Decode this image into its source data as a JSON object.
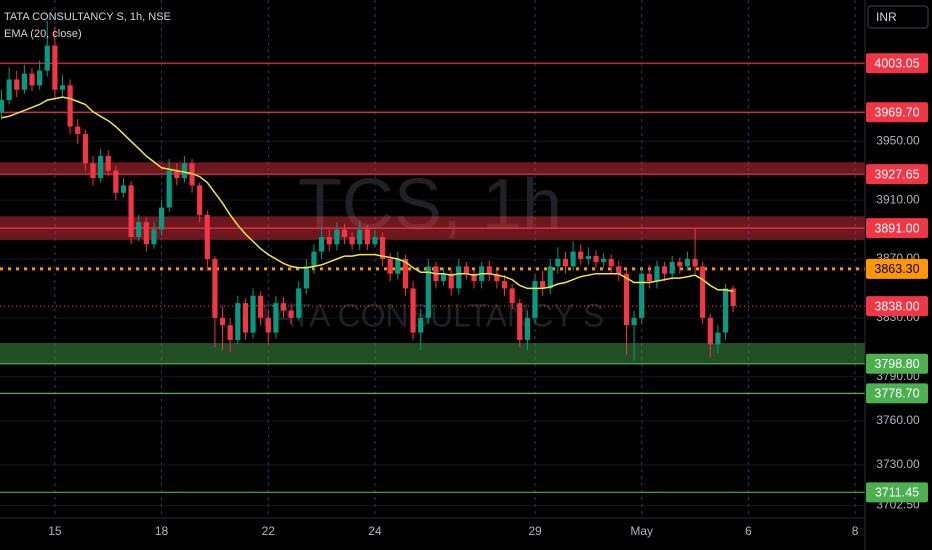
{
  "chart_data": {
    "type": "candlestick",
    "title": "TATA CONSULTANCY S, 1h, NSE",
    "currency": "INR",
    "watermark": {
      "symbol": "TCS, 1h",
      "description": "TATA CONSULTANCY S"
    },
    "up_color": "#089981",
    "down_color": "#f23645",
    "grid": true,
    "xlim": [
      -7.2,
      106.3
    ],
    "ylim": [
      3694,
      4046
    ],
    "xticks": [
      {
        "value": 0,
        "label": "15"
      },
      {
        "value": 14,
        "label": "18"
      },
      {
        "value": 28,
        "label": "22"
      },
      {
        "value": 42,
        "label": "24"
      },
      {
        "value": 63,
        "label": "29"
      },
      {
        "value": 77,
        "label": "May"
      },
      {
        "value": 91,
        "label": "6"
      },
      {
        "value": 105,
        "label": "8"
      }
    ],
    "yticks": [
      {
        "value": 3950,
        "label": "3950.00"
      },
      {
        "value": 3910,
        "label": "3910.00"
      },
      {
        "value": 3870,
        "label": "3870.00"
      },
      {
        "value": 3830,
        "label": "3830.00"
      },
      {
        "value": 3790,
        "label": "3790.00"
      },
      {
        "value": 3760,
        "label": "3760.00"
      },
      {
        "value": 3730,
        "label": "3730.00"
      },
      {
        "value": 3702.5,
        "label": "3702.50"
      }
    ],
    "x": [
      -7,
      -6,
      -5,
      -4,
      -3,
      -2,
      -1,
      0,
      1,
      2,
      3,
      4,
      5,
      6,
      7,
      8,
      9,
      10,
      11,
      12,
      13,
      14,
      15,
      16,
      17,
      18,
      19,
      20,
      21,
      22,
      23,
      24,
      25,
      26,
      27,
      28,
      29,
      30,
      31,
      32,
      33,
      34,
      35,
      36,
      37,
      38,
      39,
      40,
      41,
      42,
      43,
      44,
      45,
      46,
      47,
      48,
      49,
      50,
      51,
      52,
      53,
      54,
      55,
      56,
      57,
      58,
      59,
      60,
      61,
      62,
      63,
      64,
      65,
      66,
      67,
      68,
      69,
      70,
      71,
      72,
      73,
      74,
      75,
      76,
      77,
      78,
      79,
      80,
      81,
      82,
      83,
      84,
      85,
      86,
      87,
      88,
      89
    ],
    "open": [
      3970,
      3978,
      3992,
      3985,
      3996,
      3988,
      3998,
      4015,
      3985,
      3988,
      3960,
      3955,
      3935,
      3925,
      3940,
      3930,
      3915,
      3920,
      3885,
      3895,
      3880,
      3890,
      3905,
      3930,
      3925,
      3935,
      3920,
      3900,
      3870,
      3830,
      3825,
      3815,
      3840,
      3820,
      3845,
      3830,
      3820,
      3840,
      3835,
      3830,
      3850,
      3865,
      3875,
      3885,
      3880,
      3890,
      3885,
      3880,
      3890,
      3880,
      3885,
      3870,
      3860,
      3870,
      3850,
      3820,
      3830,
      3865,
      3855,
      3860,
      3850,
      3865,
      3860,
      3855,
      3865,
      3860,
      3855,
      3850,
      3840,
      3815,
      3830,
      3855,
      3850,
      3865,
      3870,
      3865,
      3875,
      3870,
      3872,
      3868,
      3870,
      3865,
      3860,
      3825,
      3830,
      3860,
      3855,
      3865,
      3860,
      3868,
      3865,
      3870,
      3865,
      3830,
      3812,
      3820,
      3850
    ],
    "high": [
      3985,
      4000,
      3998,
      4002,
      4000,
      4005,
      4032,
      4028,
      3995,
      3992,
      3965,
      3958,
      3940,
      3945,
      3944,
      3933,
      3925,
      3923,
      3900,
      3898,
      3895,
      3910,
      3938,
      3935,
      3940,
      3938,
      3922,
      3903,
      3872,
      3838,
      3830,
      3845,
      3843,
      3850,
      3848,
      3835,
      3845,
      3844,
      3840,
      3855,
      3870,
      3880,
      3892,
      3890,
      3895,
      3894,
      3888,
      3896,
      3893,
      3890,
      3888,
      3874,
      3875,
      3873,
      3855,
      3836,
      3870,
      3868,
      3864,
      3863,
      3870,
      3868,
      3863,
      3868,
      3869,
      3864,
      3859,
      3853,
      3843,
      3835,
      3860,
      3862,
      3870,
      3878,
      3875,
      3882,
      3880,
      3878,
      3876,
      3874,
      3873,
      3869,
      3862,
      3835,
      3864,
      3866,
      3869,
      3868,
      3872,
      3871,
      3875,
      3891,
      3868,
      3833,
      3825,
      3853,
      3852
    ],
    "low": [
      3965,
      3975,
      3980,
      3982,
      3984,
      3985,
      3994,
      3978,
      3980,
      3955,
      3948,
      3930,
      3920,
      3922,
      3926,
      3910,
      3912,
      3880,
      3882,
      3875,
      3877,
      3886,
      3902,
      3920,
      3922,
      3915,
      3895,
      3862,
      3810,
      3808,
      3807,
      3812,
      3815,
      3816,
      3825,
      3812,
      3816,
      3830,
      3826,
      3828,
      3846,
      3860,
      3870,
      3875,
      3876,
      3880,
      3876,
      3876,
      3876,
      3878,
      3865,
      3855,
      3856,
      3845,
      3815,
      3808,
      3826,
      3850,
      3852,
      3845,
      3846,
      3856,
      3850,
      3850,
      3855,
      3850,
      3845,
      3836,
      3810,
      3808,
      3826,
      3845,
      3846,
      3860,
      3860,
      3862,
      3866,
      3866,
      3864,
      3864,
      3860,
      3855,
      3805,
      3801,
      3826,
      3850,
      3850,
      3855,
      3856,
      3860,
      3862,
      3860,
      3826,
      3803,
      3806,
      3815,
      3834
    ],
    "close": [
      3978,
      3992,
      3985,
      3996,
      3988,
      3998,
      4015,
      3985,
      3988,
      3960,
      3955,
      3935,
      3925,
      3940,
      3930,
      3915,
      3920,
      3885,
      3895,
      3880,
      3890,
      3905,
      3930,
      3925,
      3935,
      3920,
      3900,
      3870,
      3830,
      3825,
      3815,
      3840,
      3820,
      3845,
      3830,
      3820,
      3840,
      3835,
      3830,
      3850,
      3865,
      3875,
      3885,
      3880,
      3890,
      3885,
      3880,
      3890,
      3880,
      3885,
      3870,
      3860,
      3870,
      3850,
      3820,
      3830,
      3865,
      3855,
      3860,
      3850,
      3865,
      3860,
      3855,
      3865,
      3860,
      3855,
      3850,
      3840,
      3815,
      3830,
      3855,
      3850,
      3865,
      3870,
      3865,
      3875,
      3870,
      3872,
      3868,
      3870,
      3865,
      3860,
      3825,
      3830,
      3860,
      3855,
      3865,
      3860,
      3868,
      3865,
      3870,
      3865,
      3830,
      3812,
      3820,
      3850,
      3838
    ],
    "series": [
      {
        "name": "EMA (20, close)",
        "color": "#f5e63c",
        "values": [
          3966,
          3967,
          3969,
          3971,
          3973,
          3975,
          3978,
          3979,
          3980,
          3979,
          3977,
          3975,
          3970,
          3967,
          3964,
          3960,
          3955,
          3950,
          3945,
          3940,
          3936,
          3932,
          3931,
          3930,
          3929,
          3928,
          3926,
          3922,
          3915,
          3908,
          3900,
          3893,
          3887,
          3882,
          3877,
          3873,
          3870,
          3867,
          3865,
          3864,
          3864,
          3865,
          3866,
          3868,
          3870,
          3872,
          3872,
          3873,
          3873,
          3873,
          3872,
          3871,
          3870,
          3868,
          3864,
          3861,
          3861,
          3860,
          3860,
          3859,
          3860,
          3860,
          3859,
          3860,
          3860,
          3859,
          3858,
          3856,
          3852,
          3850,
          3850,
          3850,
          3851,
          3853,
          3854,
          3856,
          3858,
          3859,
          3860,
          3860,
          3860,
          3860,
          3857,
          3854,
          3854,
          3854,
          3855,
          3856,
          3857,
          3857,
          3858,
          3859,
          3856,
          3852,
          3849,
          3849,
          3848
        ]
      }
    ],
    "zones": [
      {
        "from": 3927.65,
        "to": 3935.7,
        "color": "#f23645"
      },
      {
        "from": 3883,
        "to": 3899,
        "color": "#f23645"
      },
      {
        "from": 3798.8,
        "to": 3812.9,
        "color": "#4caf50"
      }
    ],
    "levels": [
      {
        "value": 4003.05,
        "label": "4003.05",
        "color": "#f23645",
        "style": "solid"
      },
      {
        "value": 3969.7,
        "label": "3969.70",
        "color": "#f23645",
        "style": "solid"
      },
      {
        "value": 3927.65,
        "label": "3927.65",
        "color": "#f23645",
        "style": "solid"
      },
      {
        "value": 3891,
        "label": "3891.00",
        "color": "#f23645",
        "style": "solid"
      },
      {
        "value": 3863.3,
        "label": "3863.30",
        "color": "#ff9800",
        "style": "dotted"
      },
      {
        "value": 3838,
        "label": "3838.00",
        "color": "#f23645",
        "style": "dotted"
      },
      {
        "value": 3798.8,
        "label": "3798.80",
        "color": "#4caf50",
        "style": "solid"
      },
      {
        "value": 3778.7,
        "label": "3778.70",
        "color": "#4caf50",
        "style": "solid"
      },
      {
        "value": 3711.45,
        "label": "3711.45",
        "color": "#4caf50",
        "style": "solid"
      }
    ]
  }
}
